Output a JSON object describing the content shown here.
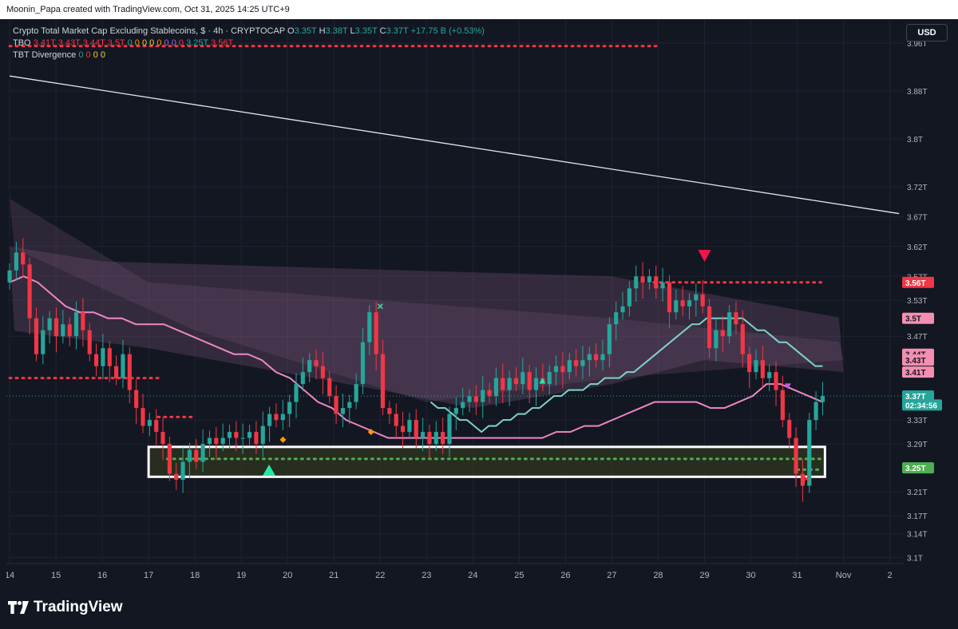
{
  "header": {
    "attribution": "Moonin_Papa created with TradingView.com, Oct 31, 2025 14:25 UTC+9"
  },
  "legend": {
    "title": "Crypto Total Market Cap Excluding Stablecoins, $ · 4h · CRYPTOCAP",
    "o_label": "O",
    "o_value": "3.35T",
    "h_label": "H",
    "h_value": "3.38T",
    "l_label": "L",
    "l_value": "3.35T",
    "c_label": "C",
    "c_value": "3.37T",
    "change": "+17.75 B (+0.53%)",
    "tbo_name": "TBO",
    "tbo_values": [
      "3.41T",
      "3.43T",
      "3.44T",
      "3.5T"
    ],
    "tbo_zeros": [
      "0",
      "0",
      "0",
      "0",
      "0",
      "0",
      "0",
      "0"
    ],
    "tbo_values2": [
      "3.25T",
      "3.56T"
    ],
    "tbt_name": "TBT Divergence",
    "tbt_zeros": [
      "0",
      "0",
      "0",
      "0"
    ]
  },
  "currency_button": "USD",
  "footer": {
    "brand": "TradingView"
  },
  "colors": {
    "background": "#131722",
    "grid": "#1f2330",
    "up": "#26a69a",
    "down": "#f23645",
    "ema_pink": "#ee87c5",
    "ema_teal": "#7fd3c8",
    "cloud": "#8a5f86",
    "resistance_red": "#f23645",
    "support_green": "#4caf50",
    "trendline": "#e8e8e8",
    "box_fill": "#2c3320",
    "box_border": "#ffffff"
  },
  "chart_data": {
    "type": "candlestick",
    "interval": "4h",
    "ylim": [
      3.09,
      4.0
    ],
    "y_ticks": [
      "3.96T",
      "3.88T",
      "3.8T",
      "3.72T",
      "3.67T",
      "3.62T",
      "3.57T",
      "3.53T",
      "3.47T",
      "3.33T",
      "3.29T",
      "3.21T",
      "3.17T",
      "3.14T",
      "3.1T"
    ],
    "y_tick_values": [
      3.96,
      3.88,
      3.8,
      3.72,
      3.67,
      3.62,
      3.57,
      3.53,
      3.47,
      3.33,
      3.29,
      3.21,
      3.17,
      3.14,
      3.1
    ],
    "x_ticks": [
      "14",
      "15",
      "16",
      "17",
      "18",
      "19",
      "20",
      "21",
      "22",
      "23",
      "24",
      "25",
      "26",
      "27",
      "28",
      "29",
      "30",
      "31",
      "Nov",
      "2"
    ],
    "x_tick_days": [
      14,
      15,
      16,
      17,
      18,
      19,
      20,
      21,
      22,
      23,
      24,
      25,
      26,
      27,
      28,
      29,
      30,
      31,
      32,
      33
    ],
    "price_labels": [
      {
        "text": "3.56T",
        "value": 3.56,
        "color": "#f23645"
      },
      {
        "text": "3.5T",
        "value": 3.5,
        "color": "#f48fb1"
      },
      {
        "text": "3.44T",
        "value": 3.44,
        "color": "#f48fb1"
      },
      {
        "text": "3.43T",
        "value": 3.43,
        "color": "#f48fb1"
      },
      {
        "text": "3.41T",
        "value": 3.41,
        "color": "#f48fb1"
      },
      {
        "text": "3.37T",
        "value": 3.37,
        "color": "#26a69a"
      },
      {
        "text": "02:34:56",
        "value": 3.355,
        "color": "#26a69a"
      },
      {
        "text": "3.25T",
        "value": 3.25,
        "color": "#4caf50"
      }
    ],
    "closes": [
      3.58,
      3.61,
      3.59,
      3.5,
      3.44,
      3.48,
      3.5,
      3.47,
      3.49,
      3.47,
      3.51,
      3.48,
      3.44,
      3.42,
      3.45,
      3.42,
      3.4,
      3.44,
      3.38,
      3.35,
      3.32,
      3.33,
      3.31,
      3.29,
      3.24,
      3.23,
      3.26,
      3.28,
      3.26,
      3.29,
      3.3,
      3.29,
      3.3,
      3.31,
      3.3,
      3.3,
      3.31,
      3.29,
      3.32,
      3.34,
      3.33,
      3.34,
      3.36,
      3.39,
      3.41,
      3.43,
      3.42,
      3.4,
      3.37,
      3.34,
      3.35,
      3.36,
      3.39,
      3.46,
      3.51,
      3.44,
      3.35,
      3.34,
      3.32,
      3.31,
      3.33,
      3.3,
      3.31,
      3.29,
      3.31,
      3.29,
      3.34,
      3.35,
      3.36,
      3.37,
      3.36,
      3.38,
      3.37,
      3.4,
      3.38,
      3.4,
      3.39,
      3.41,
      3.38,
      3.4,
      3.39,
      3.41,
      3.42,
      3.41,
      3.43,
      3.42,
      3.43,
      3.44,
      3.43,
      3.44,
      3.49,
      3.51,
      3.52,
      3.55,
      3.57,
      3.56,
      3.57,
      3.55,
      3.56,
      3.51,
      3.53,
      3.52,
      3.53,
      3.54,
      3.52,
      3.45,
      3.48,
      3.47,
      3.51,
      3.49,
      3.44,
      3.41,
      3.43,
      3.4,
      3.41,
      3.38,
      3.33,
      3.3,
      3.24,
      3.22,
      3.33,
      3.36,
      3.37
    ],
    "ema_fast": [
      3.56,
      3.57,
      3.56,
      3.54,
      3.52,
      3.51,
      3.51,
      3.5,
      3.5,
      3.49,
      3.49,
      3.49,
      3.48,
      3.47,
      3.46,
      3.45,
      3.44,
      3.44,
      3.43,
      3.41,
      3.4,
      3.38,
      3.36,
      3.35,
      3.33,
      3.32,
      3.31,
      3.3,
      3.3,
      3.3,
      3.3,
      3.3,
      3.3,
      3.3,
      3.3,
      3.3,
      3.3,
      3.3,
      3.3,
      3.31,
      3.31,
      3.32,
      3.32,
      3.33,
      3.34,
      3.35,
      3.36,
      3.36,
      3.36,
      3.36,
      3.35,
      3.35,
      3.36,
      3.37,
      3.39,
      3.39,
      3.38,
      3.37,
      3.36,
      3.35,
      3.35,
      3.34,
      3.33,
      3.33,
      3.32,
      3.31,
      3.32,
      3.32,
      3.33,
      3.33,
      3.34,
      3.34,
      3.35,
      3.35,
      3.36,
      3.37,
      3.37,
      3.38,
      3.38,
      3.38,
      3.39,
      3.39,
      3.4,
      3.4,
      3.4,
      3.41,
      3.41,
      3.42,
      3.43,
      3.44,
      3.45,
      3.46,
      3.47,
      3.48,
      3.49,
      3.49,
      3.5,
      3.5,
      3.5,
      3.5,
      3.5,
      3.5,
      3.49,
      3.48,
      3.48,
      3.47,
      3.46,
      3.46,
      3.45,
      3.44,
      3.43,
      3.42,
      3.42
    ],
    "trendline": {
      "start": {
        "day": 14.0,
        "value": 3.905
      },
      "end": {
        "day": 33.2,
        "value": 3.675
      }
    },
    "resistance_dotted": [
      {
        "from_day": 14.0,
        "to_day": 28.0,
        "value": 3.955
      },
      {
        "from_day": 27.9,
        "to_day": 31.6,
        "value": 3.56
      },
      {
        "from_day": 14.0,
        "to_day": 17.25,
        "value": 3.4
      },
      {
        "from_day": 17.2,
        "to_day": 18.0,
        "value": 3.335
      }
    ],
    "support_dotted": [
      {
        "from_day": 17.4,
        "to_day": 31.5,
        "value": 3.265
      },
      {
        "from_day": 31.0,
        "to_day": 31.5,
        "value": 3.247
      }
    ],
    "support_box": {
      "from_day": 17.0,
      "to_day": 31.6,
      "top": 3.285,
      "bottom": 3.235
    },
    "signals": [
      {
        "type": "buy-triangle",
        "day": 19.6,
        "value": 3.245,
        "color": "#26e8a6"
      },
      {
        "type": "sell-triangle",
        "day": 29.0,
        "value": 3.605,
        "color": "#f2144a"
      },
      {
        "type": "small-buy",
        "day": 25.5,
        "value": 3.395,
        "color": "#26e8a6"
      },
      {
        "type": "small-sell",
        "day": 30.8,
        "value": 3.387,
        "color": "#c455e8"
      },
      {
        "type": "cross",
        "day": 22.0,
        "value": 3.52,
        "color": "#4cd9a0"
      },
      {
        "type": "cross",
        "day": 31.2,
        "value": 3.232,
        "color": "#f23645"
      },
      {
        "type": "diamond",
        "day": 19.9,
        "value": 3.297,
        "color": "#ff9800"
      },
      {
        "type": "diamond",
        "day": 21.8,
        "value": 3.31,
        "color": "#ff9800"
      }
    ]
  }
}
